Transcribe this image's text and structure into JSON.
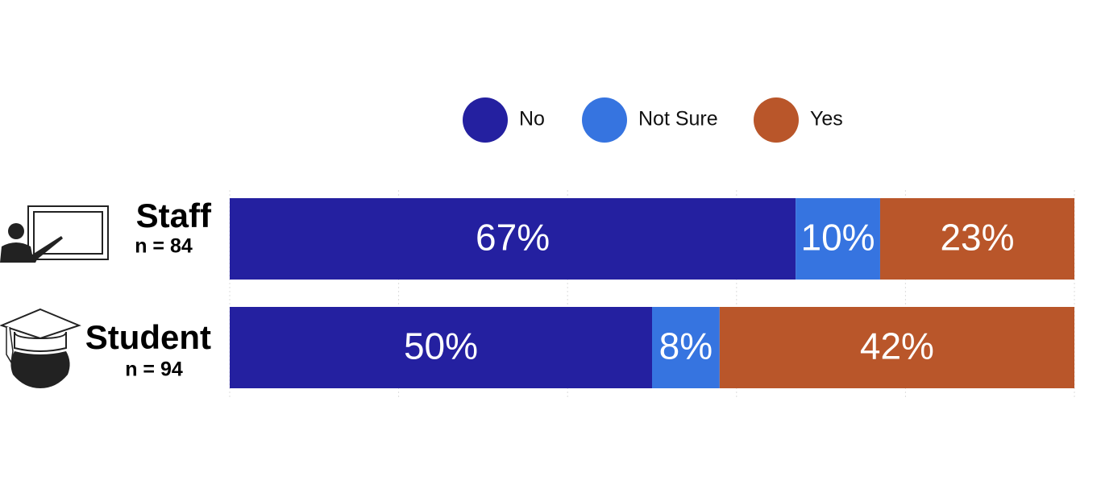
{
  "chart_data": {
    "type": "stacked-bar-horizontal",
    "categories": [
      "Staff",
      "Student"
    ],
    "category_notes": [
      "n = 84",
      "n = 94"
    ],
    "series": [
      {
        "name": "No",
        "color": "#2420a0",
        "values": [
          67,
          50
        ],
        "value_labels": [
          "67%",
          "50%"
        ]
      },
      {
        "name": "Not Sure",
        "color": "#3674e0",
        "values": [
          10,
          8
        ],
        "value_labels": [
          "10%",
          "8%"
        ]
      },
      {
        "name": "Yes",
        "color": "#b9562a",
        "values": [
          23,
          42
        ],
        "value_labels": [
          "23%",
          "42%"
        ]
      }
    ],
    "xlim": [
      0,
      100
    ],
    "xticks": [
      0,
      20,
      40,
      60,
      80,
      100
    ],
    "grid": true
  }
}
